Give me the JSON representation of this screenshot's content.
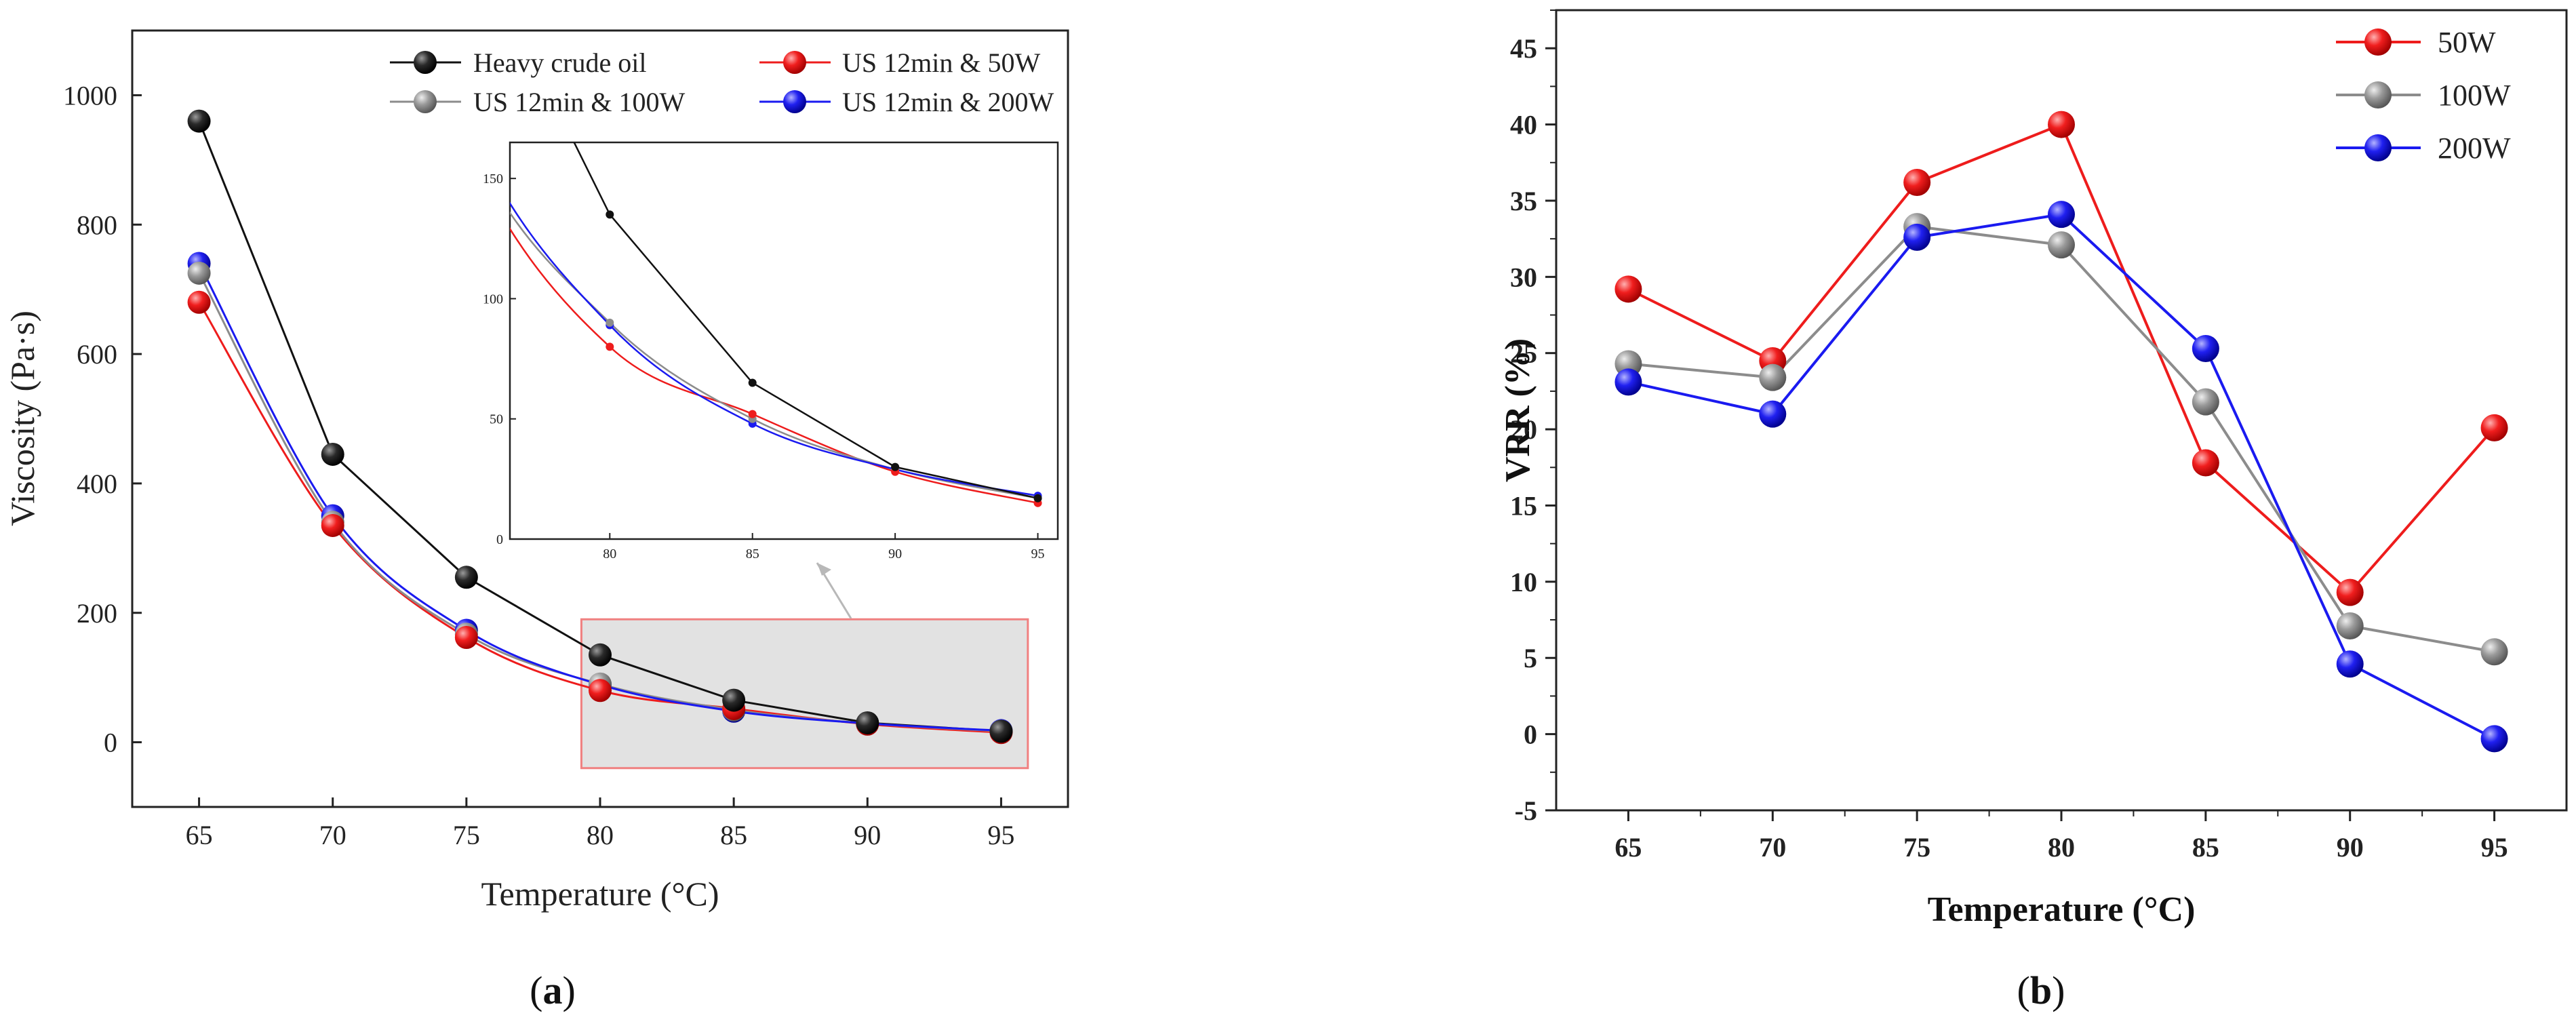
{
  "colors": {
    "heavy": "#111111",
    "w50": "#ee1c1c",
    "w100": "#8c8c8c",
    "w200": "#1a1af0",
    "inset_bg": "#e2e2e2",
    "inset_border": "#f08080"
  },
  "chart_data": [
    {
      "id": "a",
      "type": "line",
      "caption": "a",
      "xlabel": "Temperature (°C)",
      "ylabel": "Viscosity (Pa·s)",
      "x": [
        65,
        70,
        75,
        80,
        85,
        90,
        95
      ],
      "xticks": [
        "65",
        "70",
        "75",
        "80",
        "85",
        "90",
        "95"
      ],
      "yticks": [
        "0",
        "200",
        "400",
        "600",
        "800",
        "1000"
      ],
      "xlim": [
        62.5,
        97.5
      ],
      "ylim": [
        -100,
        1100
      ],
      "legend_position": "top-right",
      "series": [
        {
          "name": "Heavy crude oil",
          "color": "heavy",
          "values": [
            960,
            445,
            255,
            135,
            65,
            30,
            17
          ]
        },
        {
          "name": "US 12min & 50W",
          "color": "w50",
          "values": [
            680,
            335,
            162,
            80,
            52,
            28,
            15
          ]
        },
        {
          "name": "US 12min & 100W",
          "color": "w100",
          "values": [
            725,
            340,
            167,
            90,
            50,
            29,
            17
          ]
        },
        {
          "name": "US 12min & 200W",
          "color": "w200",
          "values": [
            740,
            350,
            173,
            89,
            48,
            29,
            18
          ]
        }
      ],
      "inset": {
        "xlim": [
          76.5,
          95.7
        ],
        "ylim": [
          0,
          165
        ],
        "xticks": [
          "80",
          "85",
          "90",
          "95"
        ],
        "yticks": [
          "0",
          "50",
          "100",
          "150"
        ],
        "zoom_region": {
          "x": [
            79.3,
            96
          ],
          "y": [
            -40,
            190
          ]
        }
      }
    },
    {
      "id": "b",
      "type": "line",
      "caption": "b",
      "xlabel": "Temperature (°C)",
      "ylabel": "VRR (%)",
      "x": [
        65,
        70,
        75,
        80,
        85,
        90,
        95
      ],
      "xticks": [
        "65",
        "70",
        "75",
        "80",
        "85",
        "90",
        "95"
      ],
      "yticks": [
        "-5",
        "0",
        "5",
        "10",
        "15",
        "20",
        "25",
        "30",
        "35",
        "40",
        "45"
      ],
      "xlim": [
        62.5,
        97.5
      ],
      "ylim": [
        -5,
        47.5
      ],
      "legend_position": "top-right",
      "series": [
        {
          "name": "50W",
          "color": "w50",
          "values": [
            29.2,
            24.5,
            36.2,
            40.0,
            17.8,
            9.3,
            20.1
          ]
        },
        {
          "name": "100W",
          "color": "w100",
          "values": [
            24.3,
            23.4,
            33.3,
            32.1,
            21.8,
            7.1,
            5.4
          ]
        },
        {
          "name": "200W",
          "color": "w200",
          "values": [
            23.1,
            21.0,
            32.6,
            34.1,
            25.3,
            4.6,
            -0.3
          ]
        }
      ]
    }
  ]
}
